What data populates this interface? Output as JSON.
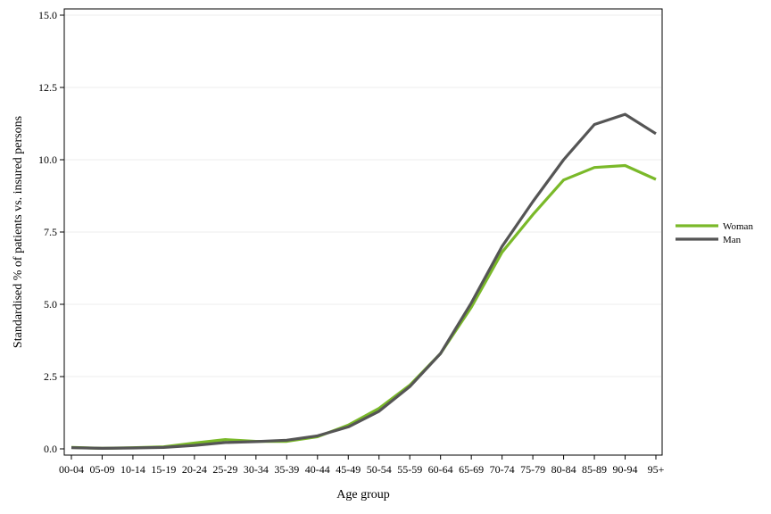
{
  "chart_data": {
    "type": "line",
    "xlabel": "Age group",
    "ylabel": "Standardised % of patients vs. insured persons",
    "ylim": [
      0,
      15
    ],
    "yticks": [
      "0.0",
      "2.5",
      "5.0",
      "7.5",
      "10.0",
      "12.5",
      "15.0"
    ],
    "ytick_values": [
      0,
      2.5,
      5,
      7.5,
      10,
      12.5,
      15
    ],
    "grid": "horizontal",
    "legend_position": "right",
    "categories": [
      "00-04",
      "05-09",
      "10-14",
      "15-19",
      "20-24",
      "25-29",
      "30-34",
      "35-39",
      "40-44",
      "45-49",
      "50-54",
      "55-59",
      "60-64",
      "65-69",
      "70-74",
      "75-79",
      "80-84",
      "85-89",
      "90-94",
      "95+"
    ],
    "series": [
      {
        "name": "Woman",
        "color": "#7ab929",
        "values": [
          0.05,
          0.02,
          0.04,
          0.07,
          0.2,
          0.32,
          0.26,
          0.26,
          0.42,
          0.82,
          1.4,
          2.2,
          3.3,
          4.9,
          6.8,
          8.1,
          9.3,
          9.73,
          9.8,
          9.32
        ]
      },
      {
        "name": "Man",
        "color": "#555555",
        "values": [
          0.04,
          0.02,
          0.03,
          0.05,
          0.12,
          0.22,
          0.25,
          0.3,
          0.45,
          0.76,
          1.3,
          2.15,
          3.3,
          5.05,
          7.0,
          8.55,
          10.0,
          11.22,
          11.57,
          10.9
        ]
      }
    ]
  }
}
